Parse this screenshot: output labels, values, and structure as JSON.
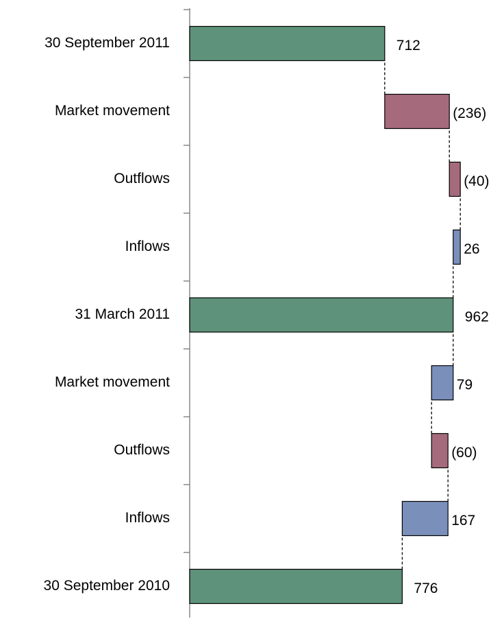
{
  "chart_data": {
    "type": "waterfall",
    "categories": [
      "30 September 2011",
      "Market movement",
      "Outflows",
      "Inflows",
      "31 March 2011",
      "Market movement",
      "Outflows",
      "Inflows",
      "30 September 2010"
    ],
    "values": [
      712,
      -236,
      -40,
      26,
      962,
      79,
      -60,
      167,
      776
    ],
    "value_labels": [
      "712",
      "(236)",
      "(40)",
      "26",
      "962",
      "79",
      "(60)",
      "167",
      "776"
    ],
    "colors": [
      "#5f927b",
      "#a56b7c",
      "#a56b7c",
      "#7b8fbb",
      "#5f927b",
      "#7b8fbb",
      "#a56b7c",
      "#7b8fbb",
      "#5f927b"
    ],
    "xlim": [
      0,
      1100
    ]
  }
}
